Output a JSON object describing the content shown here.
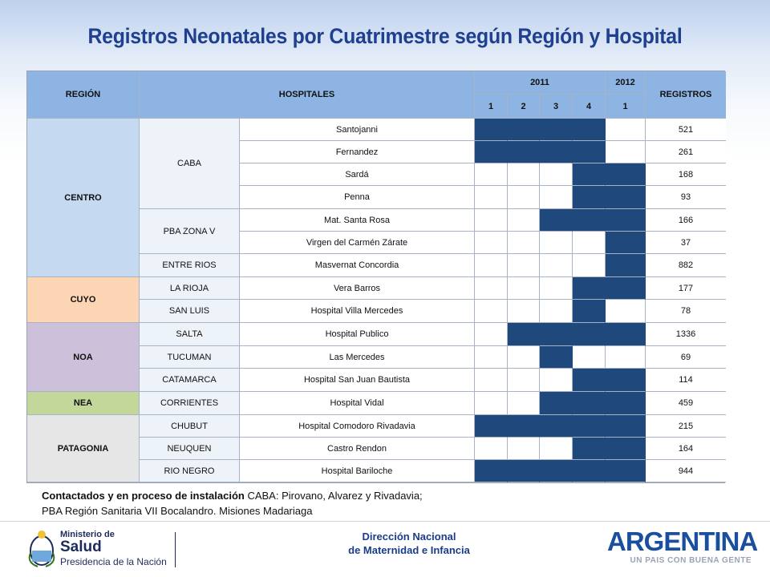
{
  "title": "Registros Neonatales por Cuatrimestre según Región y Hospital",
  "table": {
    "headers": {
      "region": "REGIÓN",
      "hospitales": "HOSPITALES",
      "year1": "2011",
      "year2": "2012",
      "registros": "REGISTROS",
      "q1": "1",
      "q2": "2",
      "q3": "3",
      "q4": "4",
      "q5": "1"
    },
    "regions": {
      "centro": "CENTRO",
      "cuyo": "CUYO",
      "noa": "NOA",
      "nea": "NEA",
      "patagonia": "PATAGONIA"
    },
    "subregions": {
      "caba": "CABA",
      "pba": "PBA ZONA V",
      "entre_rios": "ENTRE RIOS",
      "la_rioja": "LA RIOJA",
      "san_luis": "SAN LUIS",
      "salta": "SALTA",
      "tucuman": "TUCUMAN",
      "catamarca": "CATAMARCA",
      "corrientes": "CORRIENTES",
      "chubut": "CHUBUT",
      "neuquen": "NEUQUEN",
      "rio_negro": "RIO NEGRO"
    },
    "rows": [
      {
        "hospital": "Santojanni",
        "registros": "521",
        "periods": [
          1,
          1,
          1,
          1,
          0
        ]
      },
      {
        "hospital": "Fernandez",
        "registros": "261",
        "periods": [
          1,
          1,
          1,
          1,
          0
        ]
      },
      {
        "hospital": "Sardá",
        "registros": "168",
        "periods": [
          0,
          0,
          0,
          1,
          1
        ]
      },
      {
        "hospital": "Penna",
        "registros": "93",
        "periods": [
          0,
          0,
          0,
          1,
          1
        ]
      },
      {
        "hospital": "Mat. Santa Rosa",
        "registros": "166",
        "periods": [
          0,
          0,
          1,
          1,
          1
        ]
      },
      {
        "hospital": "Virgen del Carmén Zárate",
        "registros": "37",
        "periods": [
          0,
          0,
          0,
          0,
          1
        ]
      },
      {
        "hospital": "Masvernat Concordia",
        "registros": "882",
        "periods": [
          0,
          0,
          0,
          0,
          1
        ]
      },
      {
        "hospital": "Vera Barros",
        "registros": "177",
        "periods": [
          0,
          0,
          0,
          1,
          1
        ]
      },
      {
        "hospital": "Hospital Villa Mercedes",
        "registros": "78",
        "periods": [
          0,
          0,
          0,
          1,
          0
        ]
      },
      {
        "hospital": "Hospital Publico",
        "registros": "1336",
        "periods": [
          0,
          1,
          1,
          1,
          1
        ]
      },
      {
        "hospital": "Las Mercedes",
        "registros": "69",
        "periods": [
          0,
          0,
          1,
          0,
          0
        ]
      },
      {
        "hospital": "Hospital San Juan Bautista",
        "registros": "114",
        "periods": [
          0,
          0,
          0,
          1,
          1
        ]
      },
      {
        "hospital": "Hospital Vidal",
        "registros": "459",
        "periods": [
          0,
          0,
          1,
          1,
          1
        ]
      },
      {
        "hospital": "Hospital Comodoro Rivadavia",
        "registros": "215",
        "periods": [
          1,
          1,
          1,
          1,
          1
        ]
      },
      {
        "hospital": "Castro Rendon",
        "registros": "164",
        "periods": [
          0,
          0,
          0,
          1,
          1
        ]
      },
      {
        "hospital": "Hospital Bariloche",
        "registros": "944",
        "periods": [
          1,
          1,
          1,
          1,
          1
        ]
      }
    ]
  },
  "note": {
    "bold": "Contactados y en proceso de instalación",
    "line1_rest": " CABA: Pirovano, Alvarez y Rivadavia;",
    "line2": "PBA Región Sanitaria VII Bocalandro. Misiones Madariaga"
  },
  "footer": {
    "ministry_line1": "Ministerio de",
    "ministry_line2": "Salud",
    "ministry_line3": "Presidencia de la Nación",
    "center_line1": "Dirección Nacional",
    "center_line2": "de Maternidad e Infancia",
    "brand": "ARGENTINA",
    "tagline": "UN PAIS CON BUENA GENTE"
  },
  "colors": {
    "header_bg": "#8db4e2",
    "bar": "#1f497d",
    "centro": "#c5d9f1",
    "cuyo": "#fcd5b4",
    "noa": "#ccc0da",
    "nea": "#c4d79b",
    "patagonia": "#e6e6e6",
    "title": "#1f3f8f"
  }
}
